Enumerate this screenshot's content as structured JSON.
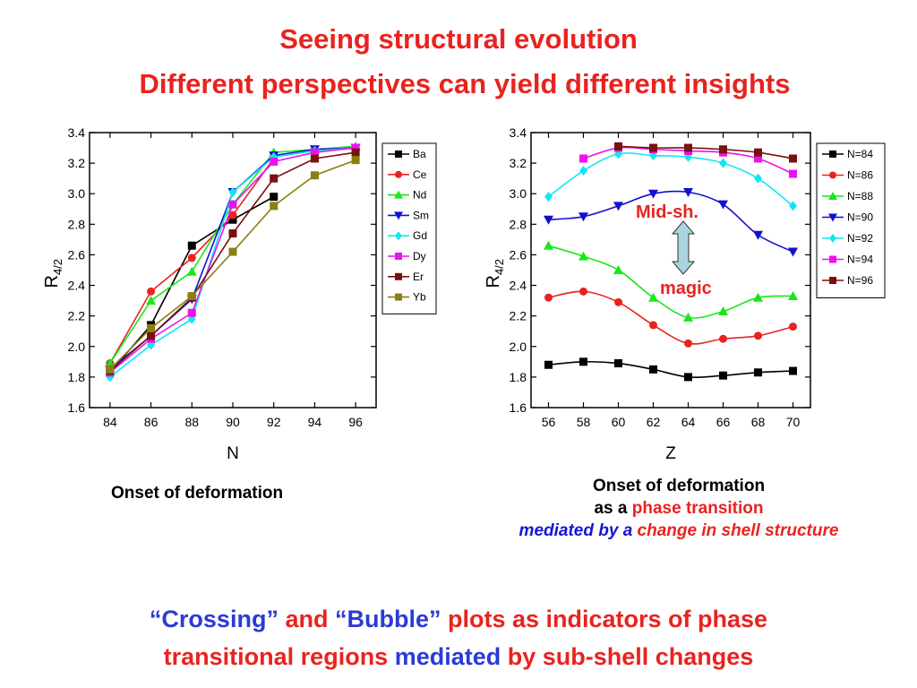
{
  "slide": {
    "title_line1": "Seeing structural evolution",
    "title_line2": "Different perspectives can yield different insights",
    "caption_left": "Onset of deformation",
    "caption_right_1": "Onset of deformation",
    "caption_right_2a": "as a ",
    "caption_right_2b": "phase transition",
    "caption_right_3a": "mediated by a ",
    "caption_right_3b": "change in shell structure",
    "annotation_mid": "Mid-sh.",
    "annotation_magic": "magic",
    "bottom_1": "“Crossing”",
    "bottom_2": " and ",
    "bottom_3": "“Bubble”",
    "bottom_4": " plots as indicators of phase",
    "bottom_5": "transitional regions ",
    "bottom_6": "mediated",
    "bottom_7": " by sub-shell changes",
    "arrow_color": "#a9d5dc"
  },
  "chart_data": [
    {
      "type": "line",
      "xlabel": "N",
      "ylabel_main": "R",
      "ylabel_sub": "4/2",
      "x": [
        84,
        86,
        88,
        90,
        92,
        94,
        96
      ],
      "xlim": [
        83,
        97
      ],
      "ylim": [
        1.6,
        3.4
      ],
      "yticks": [
        "1.6",
        "1.8",
        "2.0",
        "2.2",
        "2.4",
        "2.6",
        "2.8",
        "3.0",
        "3.2",
        "3.4"
      ],
      "xticks": [
        "84",
        "86",
        "88",
        "90",
        "92",
        "94",
        "96"
      ],
      "legend_position": "right",
      "series": [
        {
          "name": "Ba",
          "color": "#000000",
          "marker": "square",
          "values": [
            1.83,
            2.14,
            2.66,
            2.83,
            2.98,
            null,
            null
          ]
        },
        {
          "name": "Ce",
          "color": "#e8231f",
          "marker": "circle",
          "values": [
            1.89,
            2.36,
            2.58,
            2.86,
            3.23,
            null,
            null
          ]
        },
        {
          "name": "Nd",
          "color": "#18e818",
          "marker": "triangle-up",
          "values": [
            1.89,
            2.3,
            2.49,
            2.93,
            3.27,
            3.29,
            3.31
          ]
        },
        {
          "name": "Sm",
          "color": "#1010d0",
          "marker": "triangle-down",
          "values": [
            1.85,
            2.07,
            2.31,
            3.01,
            3.25,
            3.29,
            3.3
          ]
        },
        {
          "name": "Gd",
          "color": "#11e6f0",
          "marker": "diamond",
          "values": [
            1.8,
            2.01,
            2.18,
            3.01,
            3.24,
            3.28,
            3.3
          ]
        },
        {
          "name": "Dy",
          "color": "#ee11ee",
          "marker": "square",
          "values": [
            1.83,
            2.05,
            2.22,
            2.93,
            3.21,
            3.27,
            3.3
          ]
        },
        {
          "name": "Er",
          "color": "#7a1010",
          "marker": "square",
          "values": [
            1.84,
            2.07,
            2.32,
            2.74,
            3.1,
            3.23,
            3.27
          ]
        },
        {
          "name": "Yb",
          "color": "#8a8010",
          "marker": "square",
          "values": [
            1.85,
            2.12,
            2.33,
            2.62,
            2.92,
            3.12,
            3.22
          ]
        }
      ]
    },
    {
      "type": "line",
      "xlabel": "Z",
      "ylabel_main": "R",
      "ylabel_sub": "4/2",
      "x": [
        56,
        58,
        60,
        62,
        64,
        66,
        68,
        70
      ],
      "xlim": [
        55,
        71
      ],
      "ylim": [
        1.6,
        3.4
      ],
      "yticks": [
        "1.6",
        "1.8",
        "2.0",
        "2.2",
        "2.4",
        "2.6",
        "2.8",
        "3.0",
        "3.2",
        "3.4"
      ],
      "xticks": [
        "56",
        "58",
        "60",
        "62",
        "64",
        "66",
        "68",
        "70"
      ],
      "legend_position": "right",
      "series": [
        {
          "name": "N=84",
          "color": "#000000",
          "marker": "square",
          "values": [
            1.88,
            1.9,
            1.89,
            1.85,
            1.8,
            1.81,
            1.83,
            1.84
          ]
        },
        {
          "name": "N=86",
          "color": "#e8231f",
          "marker": "circle",
          "values": [
            2.32,
            2.36,
            2.29,
            2.14,
            2.02,
            2.05,
            2.07,
            2.13
          ]
        },
        {
          "name": "N=88",
          "color": "#18e818",
          "marker": "triangle-up",
          "values": [
            2.66,
            2.59,
            2.5,
            2.32,
            2.19,
            2.23,
            2.32,
            2.33
          ]
        },
        {
          "name": "N=90",
          "color": "#1010d0",
          "marker": "triangle-down",
          "values": [
            2.83,
            2.85,
            2.92,
            3.0,
            3.01,
            2.93,
            2.73,
            2.62
          ]
        },
        {
          "name": "N=92",
          "color": "#11e6f0",
          "marker": "diamond",
          "values": [
            2.98,
            3.15,
            3.26,
            3.25,
            3.24,
            3.2,
            3.1,
            2.92
          ]
        },
        {
          "name": "N=94",
          "color": "#ee11ee",
          "marker": "square",
          "values": [
            null,
            3.23,
            3.3,
            3.29,
            3.28,
            3.27,
            3.23,
            3.13
          ]
        },
        {
          "name": "N=96",
          "color": "#7a1010",
          "marker": "square",
          "values": [
            null,
            null,
            3.31,
            3.3,
            3.3,
            3.29,
            3.27,
            3.23
          ]
        }
      ]
    }
  ]
}
